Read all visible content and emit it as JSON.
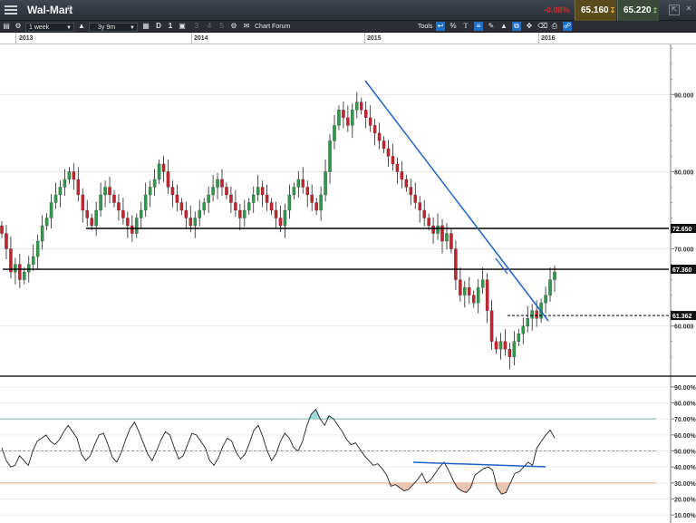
{
  "window": {
    "title": "Wal-Mart",
    "change": "-0.08%",
    "sell_price": "65.160",
    "buy_price": "65.220"
  },
  "toolbar": {
    "interval": "1 week",
    "range": "3y 9m",
    "draw_mode": "D",
    "chart_count": "1",
    "layout_options": [
      "2",
      "3",
      "4",
      "5"
    ],
    "forum_label": "Chart Forum",
    "tools_label": "Tools"
  },
  "date_axis": [
    "2013",
    "2014",
    "2015",
    "2016"
  ],
  "price_axis": {
    "ticks": [
      "90.000",
      "80.000",
      "70.000",
      "60.000"
    ],
    "ymin": 53.5,
    "ymax": 96.5
  },
  "price_lines": [
    {
      "label": "72.650",
      "value": 72.65,
      "style": "solid"
    },
    {
      "label": "67.360",
      "value": 67.36,
      "style": "solid"
    },
    {
      "label": "61.362",
      "value": 61.362,
      "style": "dashed"
    }
  ],
  "rsi_axis": {
    "ticks": [
      "90.00%",
      "80.00%",
      "70.00%",
      "60.00%",
      "50.00%",
      "40.00%",
      "30.00%",
      "20.00%",
      "10.00%"
    ],
    "overbought": 70,
    "oversold": 30,
    "midline": 50
  },
  "colors": {
    "up_candle": "#2e9b4a",
    "down_candle": "#c8232c",
    "trendline": "#1f62c4",
    "level_line": "#000000",
    "overbought_fill": "#9fd8d8",
    "oversold_fill": "#e9c6b0"
  },
  "icons": {
    "menu": "menu-icon",
    "search": "search-icon",
    "settings": "gear-icon",
    "lock": "lock-icon",
    "calendar": "calendar-icon",
    "chat": "chat-icon",
    "back": "arrow-left-icon",
    "percent": "percent-icon",
    "text": "text-tool-icon",
    "lines": "horizontal-lines-icon",
    "pen": "pen-icon",
    "eraser": "eraser-icon",
    "print": "print-icon",
    "share": "share-icon"
  }
}
